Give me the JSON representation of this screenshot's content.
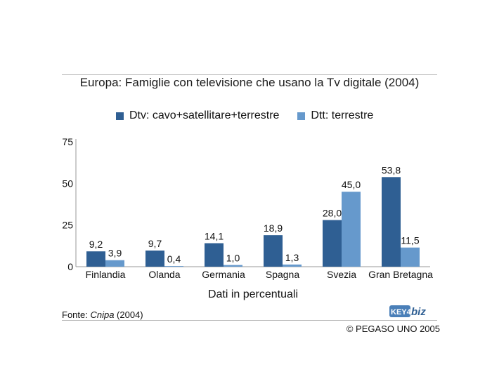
{
  "source": {
    "prefix": "Fonte: ",
    "name": "Cnipa",
    "suffix": " (2004)"
  },
  "logo_text": "KEY4biz",
  "copyright": "© PEGASO UNO 2005",
  "colors": {
    "dtv": "#2f5f93",
    "dtt": "#6699cc"
  },
  "chart_data": {
    "type": "bar",
    "title": "Europa: Famiglie con televisione che usano la Tv digitale (2004)",
    "xlabel": "Dati in percentuali",
    "ylabel": "",
    "ylim": [
      0,
      75
    ],
    "yticks": [
      "0",
      "25",
      "50",
      "75"
    ],
    "ytick_values": [
      0,
      25,
      50,
      75
    ],
    "grid": false,
    "legend": "top",
    "categories": [
      "Finlandia",
      "Olanda",
      "Germania",
      "Spagna",
      "Svezia",
      "Gran Bretagna"
    ],
    "series": [
      {
        "name": "Dtv: cavo+satellitare+terrestre",
        "values": [
          9.2,
          9.7,
          14.1,
          18.9,
          28.0,
          53.8
        ],
        "labels": [
          "9,2",
          "9,7",
          "14,1",
          "18,9",
          "28,0",
          "53,8"
        ]
      },
      {
        "name": "Dtt: terrestre",
        "values": [
          3.9,
          0.4,
          1.0,
          1.3,
          45.0,
          11.5
        ],
        "labels": [
          "3,9",
          "0,4",
          "1,0",
          "1,3",
          "45,0",
          "11,5"
        ]
      }
    ]
  }
}
